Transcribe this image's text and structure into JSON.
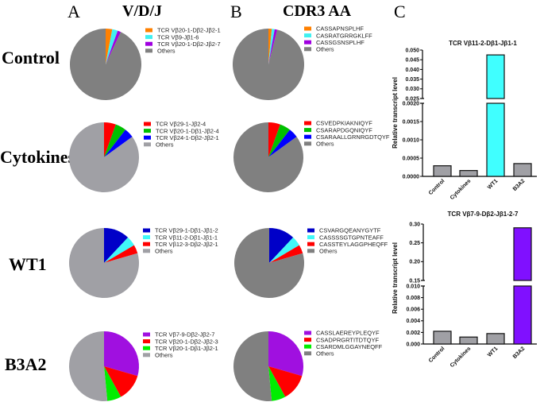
{
  "figure": {
    "panel_letters": [
      "A",
      "B",
      "C"
    ],
    "column_titles": {
      "A": "V/D/J",
      "B": "CDR3 AA"
    },
    "row_labels": [
      "Control",
      "Cytokines",
      "WT1",
      "B3A2"
    ]
  },
  "chart_data": [
    {
      "type": "pie",
      "panel": "A",
      "row": "Control",
      "title": "V/D/J",
      "slices": [
        {
          "label": "TCR Vβ20-1-Dβ2-Jβ2-1",
          "value": 3.0,
          "color": "#ff8000"
        },
        {
          "label": "TCR Vβ9-Jβ1-6",
          "value": 2.5,
          "color": "#40f0f0"
        },
        {
          "label": "TCR Vβ20-1-Dβ2-Jβ2-7",
          "value": 1.5,
          "color": "#a000e0"
        },
        {
          "label": "Others",
          "value": 93.0,
          "color": "#808080"
        }
      ]
    },
    {
      "type": "pie",
      "panel": "B",
      "row": "Control",
      "title": "CDR3 AA",
      "slices": [
        {
          "label": "CASSAPNSPLHF",
          "value": 1.5,
          "color": "#ff8000"
        },
        {
          "label": "CASRATGRRGKLFF",
          "value": 1.3,
          "color": "#40f0f0"
        },
        {
          "label": "CASSGSNSPLHF",
          "value": 1.2,
          "color": "#a000e0"
        },
        {
          "label": "Others",
          "value": 96.0,
          "color": "#808080"
        }
      ]
    },
    {
      "type": "pie",
      "panel": "A",
      "row": "Cytokines",
      "slices": [
        {
          "label": "TCR Vβ29-1-Jβ2-4",
          "value": 5.5,
          "color": "#ff0000"
        },
        {
          "label": "TCR Vβ20-1-Dβ1-Jβ2-4",
          "value": 5.0,
          "color": "#00c000"
        },
        {
          "label": "TCR Vβ24-1-Dβ2-Jβ2-1",
          "value": 4.5,
          "color": "#0000ff"
        },
        {
          "label": "Others",
          "value": 85.0,
          "color": "#a0a0a5"
        }
      ]
    },
    {
      "type": "pie",
      "panel": "B",
      "row": "Cytokines",
      "slices": [
        {
          "label": "CSVEDPKIAKNIQYF",
          "value": 5.5,
          "color": "#ff0000"
        },
        {
          "label": "CSARAPDGQNIQYF",
          "value": 5.0,
          "color": "#00c000"
        },
        {
          "label": "CSARAALLGRNRGDTQYF",
          "value": 4.5,
          "color": "#0000ff"
        },
        {
          "label": "Others",
          "value": 85.0,
          "color": "#808080"
        }
      ]
    },
    {
      "type": "pie",
      "panel": "A",
      "row": "WT1",
      "slices": [
        {
          "label": "TCR Vβ29-1-Dβ1-Jβ1-2",
          "value": 12.0,
          "color": "#0000c8"
        },
        {
          "label": "TCR Vβ11-2-Dβ1-Jβ1-1",
          "value": 4.5,
          "color": "#40f8f8"
        },
        {
          "label": "TCR Vβ12-3-Dβ2-Jβ2-1",
          "value": 4.0,
          "color": "#ff0000"
        },
        {
          "label": "Others",
          "value": 79.5,
          "color": "#a0a0a5"
        }
      ]
    },
    {
      "type": "pie",
      "panel": "B",
      "row": "WT1",
      "slices": [
        {
          "label": "CSVARGQEANYGYTF",
          "value": 12.0,
          "color": "#0000c8"
        },
        {
          "label": "CASSSSGTGPNTEAFF",
          "value": 4.5,
          "color": "#40f8f8"
        },
        {
          "label": "CASSTEYLAGGPHEQFF",
          "value": 4.0,
          "color": "#ff0000"
        },
        {
          "label": "Others",
          "value": 79.5,
          "color": "#808080"
        }
      ]
    },
    {
      "type": "pie",
      "panel": "A",
      "row": "B3A2",
      "slices": [
        {
          "label": "TCR Vβ7-9-Dβ2-Jβ2-7",
          "value": 29.5,
          "color": "#a010e0"
        },
        {
          "label": "TCR Vβ20-1-Dβ2-Jβ2-3",
          "value": 12.5,
          "color": "#ff0000"
        },
        {
          "label": "TCR Vβ20-1-Dβ1-Jβ2-1",
          "value": 6.5,
          "color": "#00ee00"
        },
        {
          "label": "Others",
          "value": 51.5,
          "color": "#a0a0a5"
        }
      ]
    },
    {
      "type": "pie",
      "panel": "B",
      "row": "B3A2",
      "slices": [
        {
          "label": "CASSLAEREYPLEQYF",
          "value": 29.5,
          "color": "#a010e0"
        },
        {
          "label": "CSADPRGRTITDTQYF",
          "value": 12.5,
          "color": "#ff0000"
        },
        {
          "label": "CSARDMLGGAYNEQFF",
          "value": 6.5,
          "color": "#00ee00"
        },
        {
          "label": "Others",
          "value": 51.5,
          "color": "#808080"
        }
      ]
    },
    {
      "type": "bar",
      "panel": "C",
      "title": "TCR Vβ11-2-Dβ1-Jβ1-1",
      "ylabel": "Relative transcript level",
      "xlabel": "",
      "categories": [
        "Control",
        "Cytokines",
        "WT1",
        "B3A2"
      ],
      "values": [
        0.00029,
        0.00016,
        0.0475,
        0.00035
      ],
      "colors": [
        "#a0a0a5",
        "#a0a0a5",
        "#40ffff",
        "#a0a0a5"
      ],
      "broken_axis": {
        "lower": {
          "range": [
            0,
            0.002
          ],
          "ticks": [
            "0.0000",
            "0.0005",
            "0.0010",
            "0.0015",
            "0.0020"
          ]
        },
        "upper": {
          "range": [
            0.025,
            0.05
          ],
          "ticks": [
            "0.025",
            "0.030",
            "0.035",
            "0.040",
            "0.045",
            "0.050"
          ]
        }
      },
      "grid": false
    },
    {
      "type": "bar",
      "panel": "C",
      "title": "TCR Vβ7-9-Dβ2-Jβ1-2-7",
      "ylabel": "Relative transcript level",
      "xlabel": "",
      "categories": [
        "Control",
        "Cytokines",
        "WT1",
        "B3A2"
      ],
      "values": [
        0.0022,
        0.0012,
        0.0018,
        0.29
      ],
      "colors": [
        "#a0a0a5",
        "#a0a0a5",
        "#a0a0a5",
        "#8010ff"
      ],
      "broken_axis": {
        "lower": {
          "range": [
            0,
            0.01
          ],
          "ticks": [
            "0.000",
            "0.002",
            "0.004",
            "0.006",
            "0.008",
            "0.010"
          ]
        },
        "upper": {
          "range": [
            0.15,
            0.3
          ],
          "ticks": [
            "0.15",
            "0.20",
            "0.25",
            "0.30"
          ]
        }
      },
      "grid": false
    }
  ]
}
